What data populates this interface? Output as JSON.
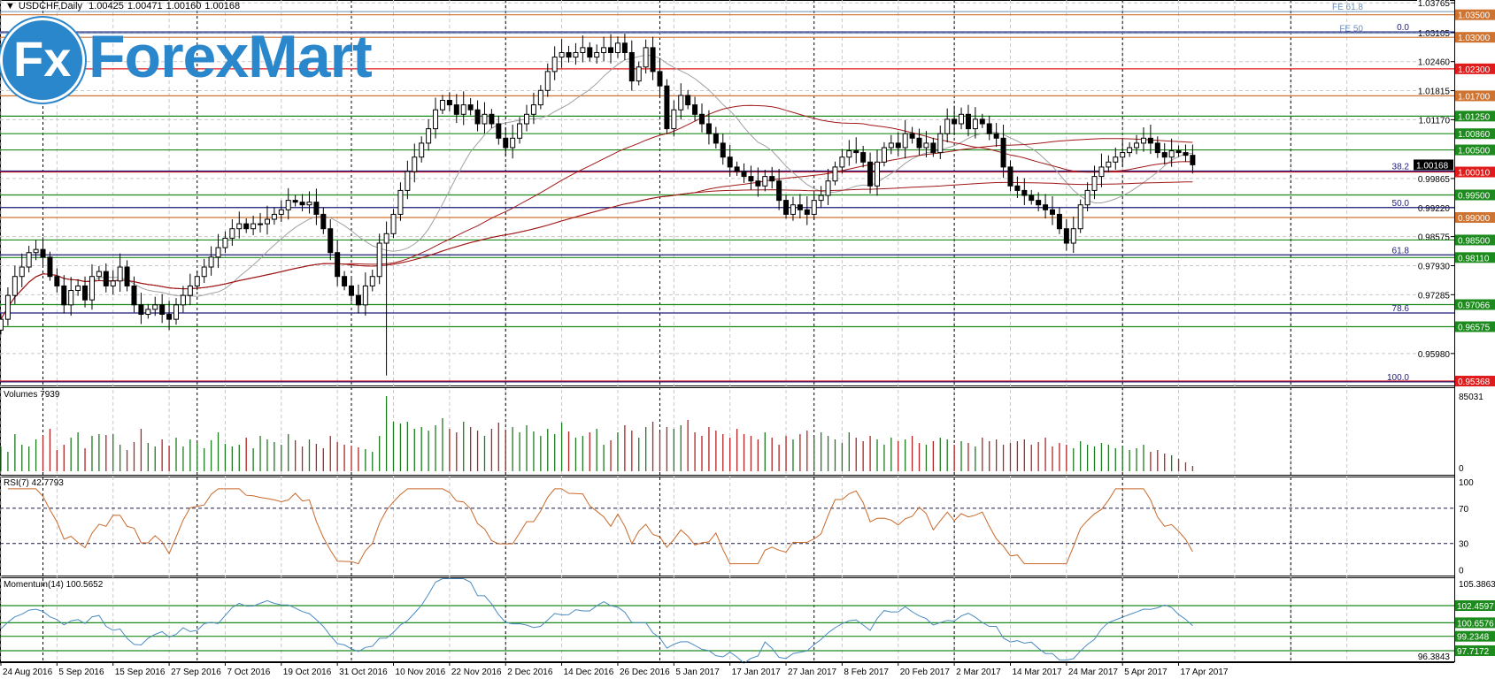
{
  "header": {
    "arrow": "▼",
    "symbol": "USDCHF,Daily",
    "open": "1.00425",
    "high": "1.00471",
    "low": "1.00160",
    "close": "1.00168"
  },
  "logo": {
    "mark": "Fx",
    "word": "ForexMart"
  },
  "colors": {
    "orange": "#cf7330",
    "red": "#e01b1b",
    "green": "#1c8a1c",
    "fib": "#1b1b7a",
    "fe": "#6d8fb8",
    "up_vol": "#1f7a1f",
    "down_vol": "#b02424",
    "rsi": "#c8692a",
    "momentum": "#4a8bbf",
    "ma_fast": "#a0a0a0",
    "ma_slow": "#a01818"
  },
  "chart_data": {
    "type": "candlestick",
    "title": "USDCHF,Daily",
    "x_labels": [
      "24 Aug 2016",
      "5 Sep 2016",
      "15 Sep 2016",
      "27 Sep 2016",
      "7 Oct 2016",
      "19 Oct 2016",
      "31 Oct 2016",
      "10 Nov 2016",
      "22 Nov 2016",
      "2 Dec 2016",
      "14 Dec 2016",
      "26 Dec 2016",
      "5 Jan 2017",
      "17 Jan 2017",
      "27 Jan 2017",
      "8 Feb 2017",
      "20 Feb 2017",
      "2 Mar 2017",
      "14 Mar 2017",
      "24 Mar 2017",
      "5 Apr 2017",
      "17 Apr 2017"
    ],
    "x_label_every_bars": 8,
    "month_separator_bars": [
      6,
      28,
      50,
      72,
      94,
      116,
      136,
      160,
      184
    ],
    "first_open": 0.965,
    "closes": [
      0.9674,
      0.9727,
      0.9769,
      0.979,
      0.9822,
      0.9829,
      0.9812,
      0.9769,
      0.9748,
      0.9706,
      0.9738,
      0.9748,
      0.9717,
      0.9769,
      0.978,
      0.9748,
      0.9759,
      0.979,
      0.9748,
      0.9706,
      0.9685,
      0.9696,
      0.9706,
      0.9685,
      0.9674,
      0.9706,
      0.9727,
      0.9748,
      0.9769,
      0.979,
      0.9812,
      0.9833,
      0.9854,
      0.9875,
      0.9886,
      0.9875,
      0.9886,
      0.9886,
      0.9896,
      0.9907,
      0.9917,
      0.9938,
      0.9934,
      0.9928,
      0.9934,
      0.9907,
      0.9875,
      0.9822,
      0.9769,
      0.9748,
      0.9727,
      0.9706,
      0.9748,
      0.9769,
      0.9843,
      0.9864,
      0.9907,
      0.996,
      1.0002,
      1.0034,
      1.0065,
      1.0097,
      1.0139,
      1.016,
      1.015,
      1.0129,
      1.015,
      1.0139,
      1.0108,
      1.0129,
      1.0108,
      1.0076,
      1.0055,
      1.0076,
      1.0108,
      1.0129,
      1.015,
      1.0182,
      1.0224,
      1.0256,
      1.0266,
      1.0256,
      1.0266,
      1.0277,
      1.0256,
      1.0266,
      1.0277,
      1.0266,
      1.0287,
      1.0266,
      1.0203,
      1.0234,
      1.0277,
      1.0224,
      1.0192,
      1.0097,
      1.0139,
      1.0171,
      1.015,
      1.0129,
      1.0108,
      1.0086,
      1.0065,
      1.0034,
      1.0012,
      1.0002,
      0.9991,
      0.9981,
      0.997,
      0.9991,
      0.9981,
      0.9938,
      0.9907,
      0.9928,
      0.9917,
      0.9907,
      0.9938,
      0.9949,
      0.9981,
      1.0012,
      1.0034,
      1.0048,
      1.0044,
      1.0023,
      0.997,
      1.0023,
      1.0055,
      1.0065,
      1.0055,
      1.0086,
      1.0076,
      1.0055,
      1.0065,
      1.0044,
      1.0086,
      1.0118,
      1.0108,
      1.0129,
      1.0097,
      1.0118,
      1.0108,
      1.0086,
      1.0076,
      1.0012,
      0.997,
      0.996,
      0.9949,
      0.9938,
      0.9928,
      0.9917,
      0.9907,
      0.9875,
      0.9843,
      0.9875,
      0.9928,
      0.996,
      0.9991,
      1.0012,
      1.0023,
      1.0034,
      1.0044,
      1.0055,
      1.0065,
      1.0076,
      1.0065,
      1.0044,
      1.0034,
      1.0048,
      1.0044,
      1.0038,
      1.0017
    ],
    "spike_low": {
      "bar": 55,
      "low": 0.9549
    },
    "price_range": [
      0.951,
      1.0383
    ],
    "price_ticks": [
      "1.03765",
      "1.03105",
      "1.02460",
      "1.01815",
      "1.01170",
      "0.99865",
      "0.99220",
      "0.98575",
      "0.97930",
      "0.97285",
      "0.95980"
    ],
    "current_price": "1.00168",
    "levels": [
      {
        "price": "1.03500",
        "color": "orange"
      },
      {
        "price": "1.03000",
        "color": "orange"
      },
      {
        "price": "1.02300",
        "color": "red"
      },
      {
        "price": "1.01700",
        "color": "orange"
      },
      {
        "price": "1.01250",
        "color": "green"
      },
      {
        "price": "1.00860",
        "color": "green"
      },
      {
        "price": "1.00500",
        "color": "green"
      },
      {
        "price": "1.00010",
        "color": "red"
      },
      {
        "price": "0.99500",
        "color": "green"
      },
      {
        "price": "0.99000",
        "color": "orange"
      },
      {
        "price": "0.98500",
        "color": "green"
      },
      {
        "price": "0.98110",
        "color": "green"
      },
      {
        "price": "0.97066",
        "color": "green"
      },
      {
        "price": "0.96575",
        "color": "green"
      },
      {
        "price": "0.95368",
        "color": "red"
      }
    ],
    "fib_levels": [
      {
        "label": "0.0",
        "price": 1.0312
      },
      {
        "label": "38.2",
        "price": 1.0003
      },
      {
        "label": "50.0",
        "price": 0.9922
      },
      {
        "label": "61.8",
        "price": 0.9817
      },
      {
        "label": "78.6",
        "price": 0.9688
      },
      {
        "label": "100.0",
        "price": 0.9535
      }
    ],
    "fe_levels": [
      {
        "label": "FE 61.8",
        "price": 1.0357
      },
      {
        "label": "FE 50",
        "price": 1.0309
      }
    ],
    "moving_averages": [
      14,
      50,
      100,
      200
    ],
    "volumes": {
      "label": "Volumes 7939",
      "max_label": "85031",
      "min_label": "0",
      "max": 85031,
      "values_k": [
        28,
        22,
        42,
        30,
        28,
        36,
        40,
        48,
        24,
        30,
        38,
        44,
        26,
        40,
        42,
        41,
        42,
        30,
        24,
        33,
        48,
        32,
        28,
        36,
        29,
        38,
        28,
        36,
        32,
        26,
        35,
        44,
        31,
        28,
        30,
        38,
        26,
        40,
        36,
        33,
        30,
        42,
        35,
        28,
        36,
        31,
        26,
        40,
        33,
        30,
        29,
        27,
        25,
        22,
        40,
        85,
        56,
        54,
        56,
        48,
        50,
        46,
        52,
        60,
        48,
        44,
        56,
        50,
        46,
        40,
        48,
        55,
        47,
        50,
        44,
        52,
        45,
        40,
        48,
        42,
        55,
        45,
        38,
        40,
        44,
        48,
        30,
        35,
        44,
        52,
        46,
        38,
        50,
        56,
        44,
        50,
        48,
        52,
        58,
        44,
        40,
        50,
        46,
        42,
        38,
        48,
        42,
        40,
        36,
        44,
        38,
        30,
        40,
        36,
        42,
        46,
        38,
        44,
        40,
        36,
        32,
        44,
        38,
        34,
        40,
        36,
        30,
        38,
        34,
        36,
        40,
        32,
        30,
        34,
        38,
        36,
        30,
        34,
        32,
        28,
        38,
        34,
        36,
        30,
        32,
        34,
        36,
        30,
        33,
        38,
        28,
        32,
        30,
        26,
        34,
        30,
        28,
        32,
        30,
        26,
        28,
        24,
        26,
        30,
        22,
        24,
        20,
        18,
        14,
        10,
        6
      ]
    },
    "rsi": {
      "label": "RSI(7) 42.7793",
      "period": 7,
      "ticks": [
        "100",
        "70",
        "30",
        "0"
      ],
      "levels": [
        70,
        30
      ]
    },
    "momentum": {
      "label": "Momentum(14) 100.5652",
      "period": 14,
      "top_label": "105.3863",
      "bottom_label": "96.3843",
      "levels": [
        {
          "value": "102.4597"
        },
        {
          "value": "100.6576"
        },
        {
          "value": "99.2348"
        },
        {
          "value": "97.7172"
        }
      ]
    }
  }
}
